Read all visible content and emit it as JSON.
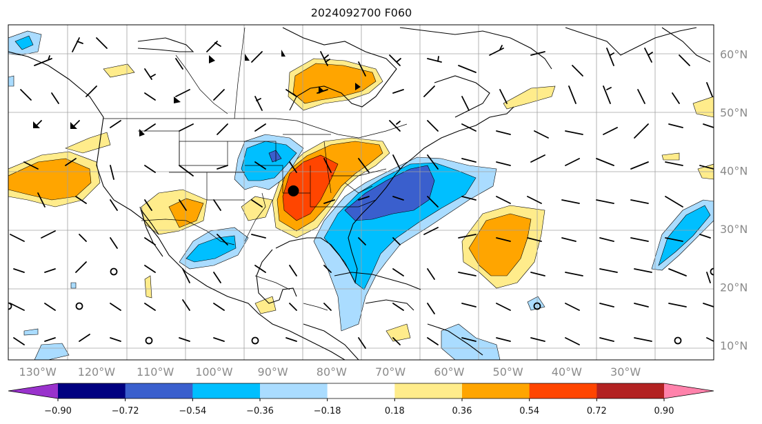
{
  "title": "2024092700 F060",
  "map": {
    "lon_range": [
      -135,
      -15
    ],
    "lat_range": [
      7.5,
      65
    ],
    "lon_ticks": [
      "130°W",
      "120°W",
      "110°W",
      "100°W",
      "90°W",
      "80°W",
      "70°W",
      "60°W",
      "50°W",
      "40°W",
      "30°W"
    ],
    "lon_tick_values": [
      -130,
      -120,
      -110,
      -100,
      -90,
      -80,
      -70,
      -60,
      -50,
      -40,
      -30
    ],
    "lat_ticks": [
      "10°N",
      "20°N",
      "30°N",
      "40°N",
      "50°N",
      "60°N"
    ],
    "lat_tick_values": [
      10,
      20,
      30,
      40,
      50,
      60
    ],
    "marker": {
      "lon": -86.5,
      "lat": 36.5,
      "color": "#000000"
    }
  },
  "colorbar": {
    "colors": [
      "#9932cc",
      "#000080",
      "#3a5fcd",
      "#00bfff",
      "#aadcff",
      "#ffffff",
      "#ffec8b",
      "#ffa500",
      "#ff4500",
      "#b22222",
      "#ff82ab"
    ],
    "labels": [
      "−0.90",
      "−0.72",
      "−0.54",
      "−0.36",
      "−0.18",
      "0.18",
      "0.36",
      "0.54",
      "0.72",
      "0.90"
    ]
  }
}
